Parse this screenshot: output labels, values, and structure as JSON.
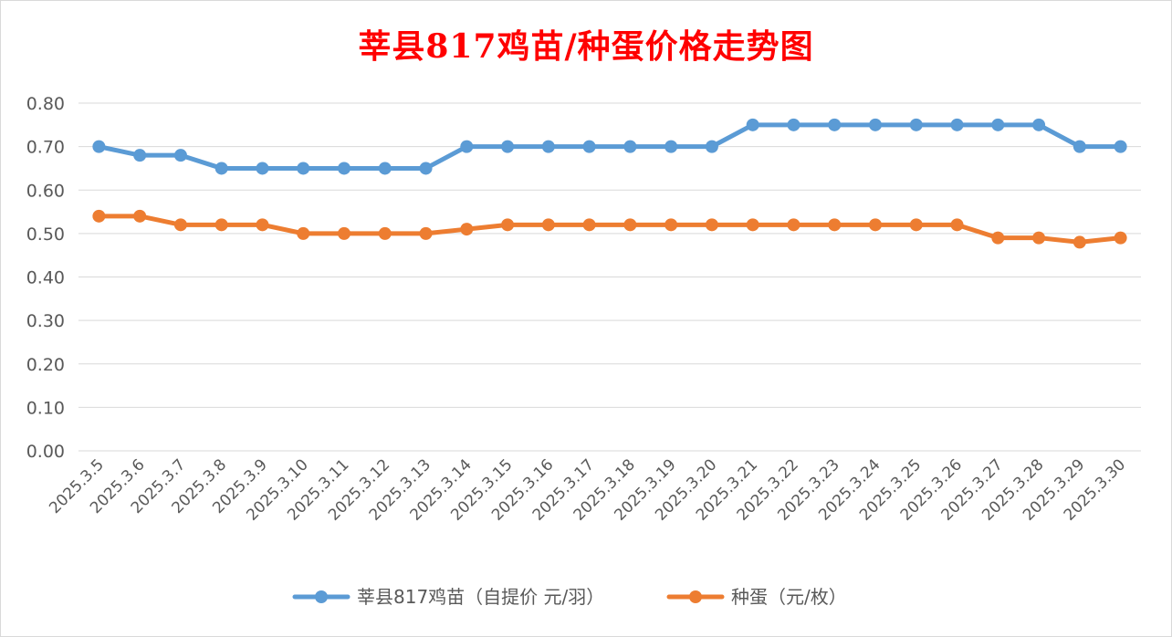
{
  "chart_data": {
    "type": "line",
    "title": "莘县817鸡苗/种蛋价格走势图",
    "xlabel": "",
    "ylabel": "",
    "ylim": [
      0,
      0.8
    ],
    "yticks": [
      "0.00",
      "0.10",
      "0.20",
      "0.30",
      "0.40",
      "0.50",
      "0.60",
      "0.70",
      "0.80"
    ],
    "grid": true,
    "legend_position": "bottom",
    "categories": [
      "2025.3.5",
      "2025.3.6",
      "2025.3.7",
      "2025.3.8",
      "2025.3.9",
      "2025.3.10",
      "2025.3.11",
      "2025.3.12",
      "2025.3.13",
      "2025.3.14",
      "2025.3.15",
      "2025.3.16",
      "2025.3.17",
      "2025.3.18",
      "2025.3.19",
      "2025.3.20",
      "2025.3.21",
      "2025.3.22",
      "2025.3.23",
      "2025.3.24",
      "2025.3.25",
      "2025.3.26",
      "2025.3.27",
      "2025.3.28",
      "2025.3.29",
      "2025.3.30"
    ],
    "series": [
      {
        "name": "莘县817鸡苗（自提价 元/羽）",
        "color": "#5b9bd5",
        "values": [
          0.7,
          0.68,
          0.68,
          0.65,
          0.65,
          0.65,
          0.65,
          0.65,
          0.65,
          0.7,
          0.7,
          0.7,
          0.7,
          0.7,
          0.7,
          0.7,
          0.75,
          0.75,
          0.75,
          0.75,
          0.75,
          0.75,
          0.75,
          0.75,
          0.7,
          0.7
        ]
      },
      {
        "name": "种蛋（元/枚）",
        "color": "#ed7d31",
        "values": [
          0.54,
          0.54,
          0.52,
          0.52,
          0.52,
          0.5,
          0.5,
          0.5,
          0.5,
          0.51,
          0.52,
          0.52,
          0.52,
          0.52,
          0.52,
          0.52,
          0.52,
          0.52,
          0.52,
          0.52,
          0.52,
          0.52,
          0.49,
          0.49,
          0.48,
          0.49
        ]
      }
    ]
  }
}
